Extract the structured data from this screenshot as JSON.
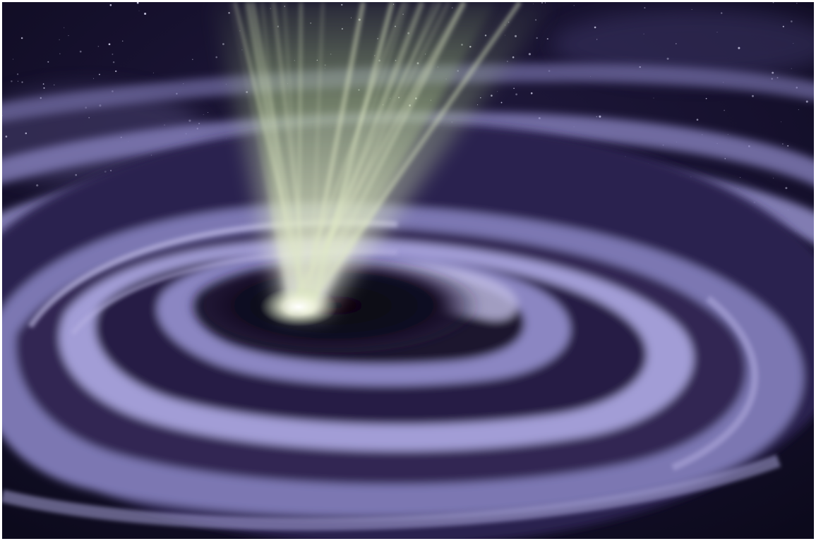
{
  "image": {
    "subject": "spiral-vortex-with-jet",
    "colors": {
      "space": "#110d28",
      "spiral": "#9a95cf",
      "spiral_dark": "#1c1634",
      "jet": "#dfe8c4",
      "jet_glow": "#b9cf9a",
      "star": "#d8d6f0"
    }
  }
}
